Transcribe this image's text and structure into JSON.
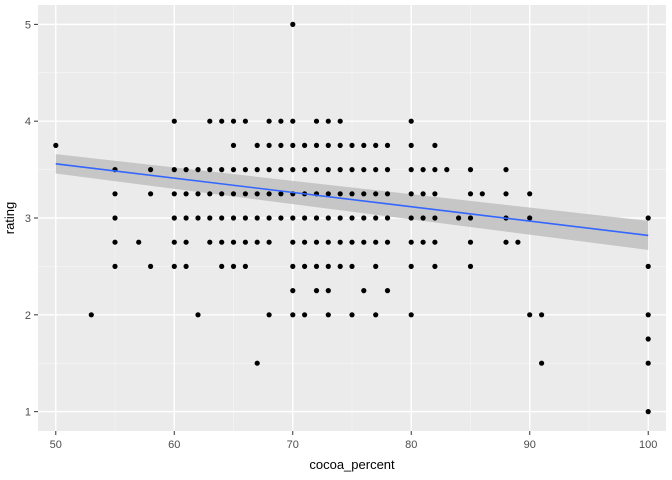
{
  "chart_data": {
    "type": "scatter",
    "xlabel": "cocoa_percent",
    "ylabel": "rating",
    "xlim": [
      48.5,
      101.5
    ],
    "ylim": [
      0.8,
      5.2
    ],
    "x_ticks": [
      50,
      60,
      70,
      80,
      90,
      100
    ],
    "x_tick_labels": [
      "50",
      "60",
      "70",
      "80",
      "90",
      "100"
    ],
    "y_ticks": [
      1,
      2,
      3,
      4,
      5
    ],
    "y_tick_labels": [
      "1",
      "2",
      "3",
      "4",
      "5"
    ],
    "grid": true,
    "panel_background": "#ebebeb",
    "point_color": "#000000",
    "trend_color": "#3366ff",
    "band_color": "#c0c0c0",
    "points": [
      [
        50,
        3.75
      ],
      [
        53,
        2
      ],
      [
        55,
        3.5
      ],
      [
        55,
        3.25
      ],
      [
        55,
        3
      ],
      [
        55,
        2.75
      ],
      [
        55,
        2.5
      ],
      [
        57,
        2.75
      ],
      [
        58,
        3.5
      ],
      [
        58,
        3.25
      ],
      [
        58,
        2.5
      ],
      [
        60,
        4
      ],
      [
        60,
        3.5
      ],
      [
        60,
        3.25
      ],
      [
        60,
        3
      ],
      [
        60,
        2.75
      ],
      [
        60,
        2.5
      ],
      [
        61,
        3.5
      ],
      [
        61,
        3.25
      ],
      [
        61,
        3
      ],
      [
        61,
        2.75
      ],
      [
        61,
        2.5
      ],
      [
        62,
        3.5
      ],
      [
        62,
        3.25
      ],
      [
        62,
        3
      ],
      [
        62,
        2
      ],
      [
        63,
        4
      ],
      [
        63,
        3.5
      ],
      [
        63,
        3.25
      ],
      [
        63,
        3
      ],
      [
        63,
        2.75
      ],
      [
        64,
        4
      ],
      [
        64,
        3.5
      ],
      [
        64,
        3.25
      ],
      [
        64,
        3
      ],
      [
        64,
        2.75
      ],
      [
        64,
        2.5
      ],
      [
        65,
        4
      ],
      [
        65,
        3.75
      ],
      [
        65,
        3.5
      ],
      [
        65,
        3.25
      ],
      [
        65,
        3
      ],
      [
        65,
        2.75
      ],
      [
        65,
        2.5
      ],
      [
        66,
        4
      ],
      [
        66,
        3.5
      ],
      [
        66,
        3.25
      ],
      [
        66,
        3
      ],
      [
        66,
        2.75
      ],
      [
        66,
        2.5
      ],
      [
        67,
        3.75
      ],
      [
        67,
        3.5
      ],
      [
        67,
        3.25
      ],
      [
        67,
        3
      ],
      [
        67,
        2.75
      ],
      [
        67,
        1.5
      ],
      [
        68,
        4
      ],
      [
        68,
        3.75
      ],
      [
        68,
        3.5
      ],
      [
        68,
        3.25
      ],
      [
        68,
        3
      ],
      [
        68,
        2.75
      ],
      [
        68,
        2
      ],
      [
        69,
        4
      ],
      [
        69,
        3.75
      ],
      [
        69,
        3.5
      ],
      [
        69,
        3.25
      ],
      [
        69,
        3
      ],
      [
        70,
        5
      ],
      [
        70,
        4
      ],
      [
        70,
        3.75
      ],
      [
        70,
        3.5
      ],
      [
        70,
        3.25
      ],
      [
        70,
        3
      ],
      [
        70,
        2.75
      ],
      [
        70,
        2.5
      ],
      [
        70,
        2.25
      ],
      [
        70,
        2
      ],
      [
        71,
        3.75
      ],
      [
        71,
        3.5
      ],
      [
        71,
        3.25
      ],
      [
        71,
        3
      ],
      [
        71,
        2.75
      ],
      [
        71,
        2.5
      ],
      [
        71,
        2
      ],
      [
        72,
        4
      ],
      [
        72,
        3.75
      ],
      [
        72,
        3.5
      ],
      [
        72,
        3.25
      ],
      [
        72,
        3
      ],
      [
        72,
        2.75
      ],
      [
        72,
        2.5
      ],
      [
        72,
        2.25
      ],
      [
        73,
        4
      ],
      [
        73,
        3.75
      ],
      [
        73,
        3.5
      ],
      [
        73,
        3.25
      ],
      [
        73,
        3
      ],
      [
        73,
        2.75
      ],
      [
        73,
        2.5
      ],
      [
        73,
        2.25
      ],
      [
        73,
        2
      ],
      [
        74,
        4
      ],
      [
        74,
        3.75
      ],
      [
        74,
        3.5
      ],
      [
        74,
        3.25
      ],
      [
        74,
        3
      ],
      [
        74,
        2.75
      ],
      [
        74,
        2.5
      ],
      [
        75,
        3.75
      ],
      [
        75,
        3.5
      ],
      [
        75,
        3.25
      ],
      [
        75,
        3
      ],
      [
        75,
        2.75
      ],
      [
        75,
        2.5
      ],
      [
        75,
        2
      ],
      [
        76,
        3.75
      ],
      [
        76,
        3.5
      ],
      [
        76,
        3.25
      ],
      [
        76,
        3
      ],
      [
        76,
        2.75
      ],
      [
        76,
        2.25
      ],
      [
        77,
        3.75
      ],
      [
        77,
        3.5
      ],
      [
        77,
        3.25
      ],
      [
        77,
        3
      ],
      [
        77,
        2.75
      ],
      [
        77,
        2.5
      ],
      [
        77,
        2
      ],
      [
        78,
        3.75
      ],
      [
        78,
        3.5
      ],
      [
        78,
        3.25
      ],
      [
        78,
        3
      ],
      [
        78,
        2.75
      ],
      [
        78,
        2.25
      ],
      [
        80,
        4
      ],
      [
        80,
        3.75
      ],
      [
        80,
        3.5
      ],
      [
        80,
        3.25
      ],
      [
        80,
        3
      ],
      [
        80,
        2.75
      ],
      [
        80,
        2.5
      ],
      [
        80,
        2
      ],
      [
        81,
        3.5
      ],
      [
        81,
        3.25
      ],
      [
        81,
        3
      ],
      [
        81,
        2.75
      ],
      [
        82,
        3.75
      ],
      [
        82,
        3.5
      ],
      [
        82,
        3.25
      ],
      [
        82,
        3
      ],
      [
        82,
        2.75
      ],
      [
        82,
        2.5
      ],
      [
        83,
        3.5
      ],
      [
        84,
        3
      ],
      [
        85,
        3.5
      ],
      [
        85,
        3.25
      ],
      [
        85,
        3
      ],
      [
        85,
        2.75
      ],
      [
        85,
        2.5
      ],
      [
        86,
        3.25
      ],
      [
        88,
        3.5
      ],
      [
        88,
        3.25
      ],
      [
        88,
        3
      ],
      [
        88,
        2.75
      ],
      [
        89,
        2.75
      ],
      [
        90,
        3.25
      ],
      [
        90,
        3
      ],
      [
        90,
        2
      ],
      [
        91,
        2
      ],
      [
        91,
        1.5
      ],
      [
        100,
        3
      ],
      [
        100,
        2.5
      ],
      [
        100,
        2
      ],
      [
        100,
        1.75
      ],
      [
        100,
        1.5
      ],
      [
        100,
        1
      ]
    ],
    "trend": {
      "x": [
        50,
        100
      ],
      "y": [
        3.56,
        2.82
      ],
      "band_upper": [
        3.66,
        2.97
      ],
      "band_lower": [
        3.46,
        2.67
      ]
    }
  }
}
